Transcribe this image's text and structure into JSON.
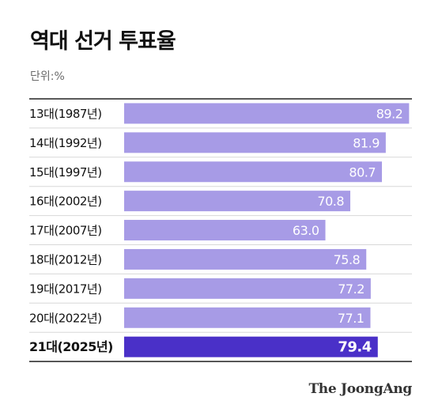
{
  "title": "역대 선거 투표율",
  "unit_label": "단위:%",
  "source": "The JoongAng",
  "colors": {
    "bar": "#a79be6",
    "bar_highlight": "#4a30c8",
    "rule": "#222222",
    "divider": "#d8d8d8"
  },
  "chart_data": {
    "type": "bar",
    "orientation": "horizontal",
    "title": "역대 선거 투표율",
    "unit": "%",
    "categories": [
      "13대(1987년)",
      "14대(1992년)",
      "15대(1997년)",
      "16대(2002년)",
      "17대(2007년)",
      "18대(2012년)",
      "19대(2017년)",
      "20대(2022년)",
      "21대(2025년)"
    ],
    "values": [
      89.2,
      81.9,
      80.7,
      70.8,
      63.0,
      75.8,
      77.2,
      77.1,
      79.4
    ],
    "value_labels": [
      "89.2",
      "81.9",
      "80.7",
      "70.8",
      "63.0",
      "75.8",
      "77.2",
      "77.1",
      "79.4"
    ],
    "highlight_index": 8,
    "xlim": [
      0,
      100
    ],
    "grid": false,
    "legend": "none"
  }
}
